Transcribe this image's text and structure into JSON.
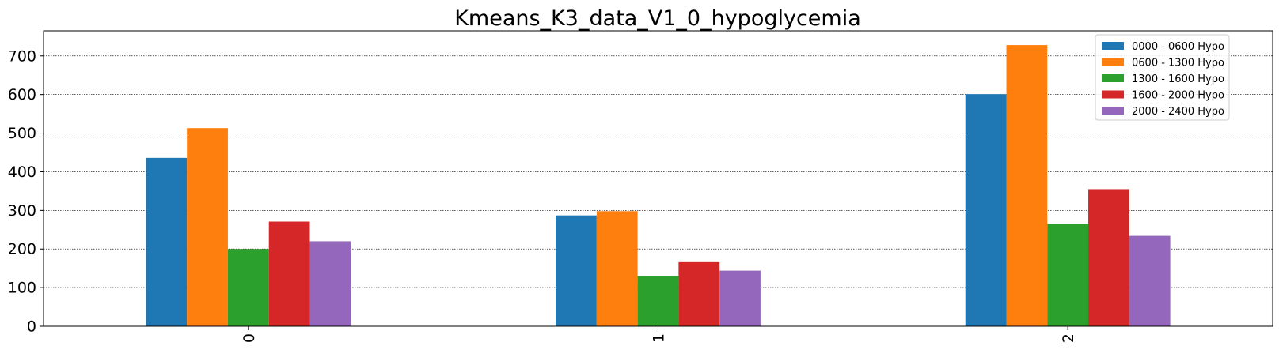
{
  "chart_data": {
    "type": "bar",
    "title": "Kmeans_K3_data_V1_0_hypoglycemia",
    "xlabel": "",
    "ylabel": "",
    "categories": [
      "0",
      "1",
      "2"
    ],
    "ylim": [
      0,
      765
    ],
    "yticks": [
      0,
      100,
      200,
      300,
      400,
      500,
      600,
      700
    ],
    "grid": "y-dotted",
    "legend_position": "top-right",
    "series": [
      {
        "name": "0000 - 0600 Hypo",
        "color": "#1f77b4",
        "values": [
          436,
          287,
          601
        ]
      },
      {
        "name": "0600 - 1300 Hypo",
        "color": "#ff7f0e",
        "values": [
          513,
          298,
          728
        ]
      },
      {
        "name": "1300 - 1600 Hypo",
        "color": "#2ca02c",
        "values": [
          200,
          130,
          265
        ]
      },
      {
        "name": "1600 - 2000 Hypo",
        "color": "#d62728",
        "values": [
          271,
          166,
          355
        ]
      },
      {
        "name": "2000 - 2400 Hypo",
        "color": "#9467bd",
        "values": [
          220,
          144,
          234
        ]
      }
    ]
  }
}
